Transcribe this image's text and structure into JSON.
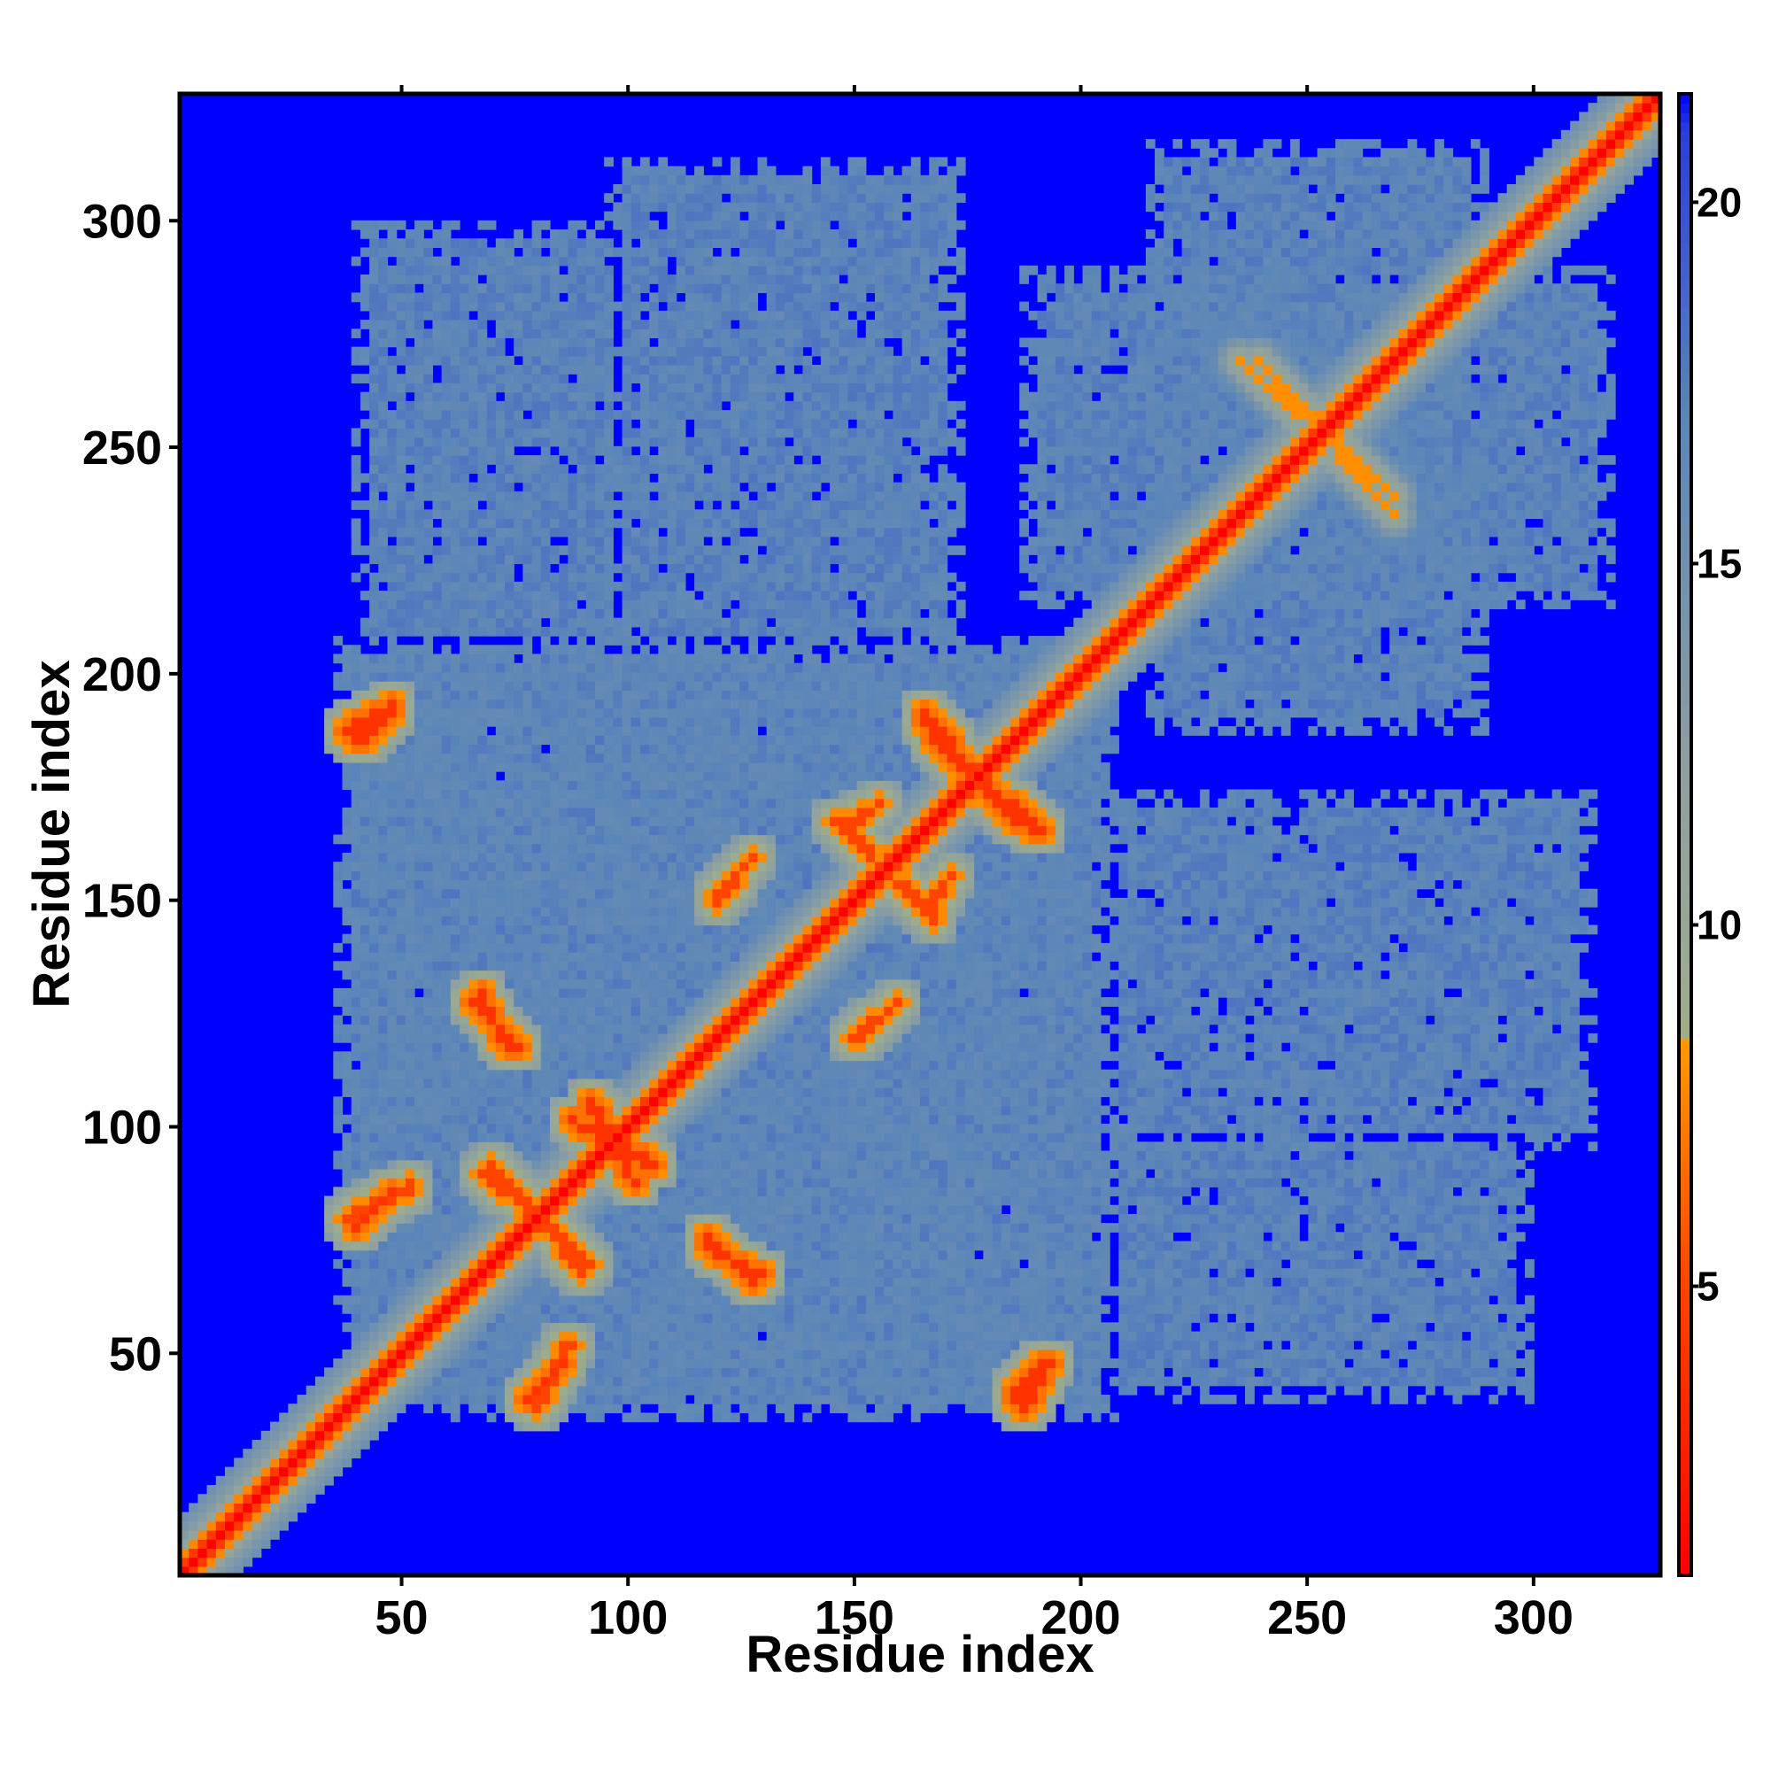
{
  "chart_data": {
    "type": "heatmap",
    "title": "",
    "xlabel": "Residue index",
    "ylabel": "Residue index",
    "x_range": [
      1,
      328
    ],
    "y_range": [
      1,
      328
    ],
    "x_ticks": [
      50,
      100,
      150,
      200,
      250,
      300
    ],
    "y_ticks": [
      50,
      100,
      150,
      200,
      250,
      300
    ],
    "colorbar": {
      "range": [
        1,
        21.5
      ],
      "ticks": [
        5,
        10,
        15,
        20
      ],
      "stops": [
        {
          "value": 1.0,
          "color": "#ff0000"
        },
        {
          "value": 5.0,
          "color": "#ff4400"
        },
        {
          "value": 8.4,
          "color": "#ff9900"
        },
        {
          "value": 8.5,
          "color": "#9fae8a"
        },
        {
          "value": 12.0,
          "color": "#8fa0a0"
        },
        {
          "value": 17.0,
          "color": "#5b86b9"
        },
        {
          "value": 21.0,
          "color": "#2a3fd6"
        },
        {
          "value": 21.5,
          "color": "#0000ff"
        }
      ]
    },
    "background_value": 21.5,
    "diagonal": {
      "start": 1,
      "end": 328,
      "core_value": 1.0,
      "band_width": 6
    },
    "regions": [
      {
        "x": [
          38,
          208
        ],
        "y": [
          35,
          207
        ],
        "value": 17
      },
      {
        "x": [
          188,
          318
        ],
        "y": [
          216,
          290
        ],
        "value": 17
      },
      {
        "x": [
          205,
          315
        ],
        "y": [
          95,
          175
        ],
        "value": 17
      },
      {
        "x": [
          205,
          300
        ],
        "y": [
          40,
          100
        ],
        "value": 17
      },
      {
        "x": [
          2,
          14
        ],
        "y": [
          2,
          14
        ],
        "value": 17
      }
    ],
    "contacts": [
      {
        "x": [
          65,
          75
        ],
        "y": [
          128,
          118
        ],
        "value": 4
      },
      {
        "x": [
          38,
          48
        ],
        "y": [
          188,
          193
        ],
        "value": 4
      },
      {
        "x": [
          168,
          192
        ],
        "y": [
          186,
          165
        ],
        "value": 4
      },
      {
        "x": [
          87,
          105
        ],
        "y": [
          102,
          92
        ],
        "value": 4
      },
      {
        "x": [
          118,
          129
        ],
        "y": [
          74,
          67
        ],
        "value": 4
      },
      {
        "x": [
          185,
          192
        ],
        "y": [
          40,
          47
        ],
        "value": 4
      },
      {
        "x": [
          78,
          86
        ],
        "y": [
          40,
          48
        ],
        "value": 4
      },
      {
        "x": [
          37,
          52
        ],
        "y": [
          80,
          87
        ],
        "value": 5
      },
      {
        "x": [
          148,
          156
        ],
        "y": [
          167,
          172
        ],
        "value": 5
      },
      {
        "x": [
          160,
          168
        ],
        "y": [
          154,
          146
        ],
        "value": 5
      },
      {
        "x": [
          235,
          270
        ],
        "y": [
          270,
          240
        ],
        "value": 8
      },
      {
        "x": [
          68,
          92
        ],
        "y": [
          90,
          70
        ],
        "value": 5
      },
      {
        "x": [
          150,
          160
        ],
        "y": [
          120,
          128
        ],
        "value": 5
      }
    ]
  }
}
